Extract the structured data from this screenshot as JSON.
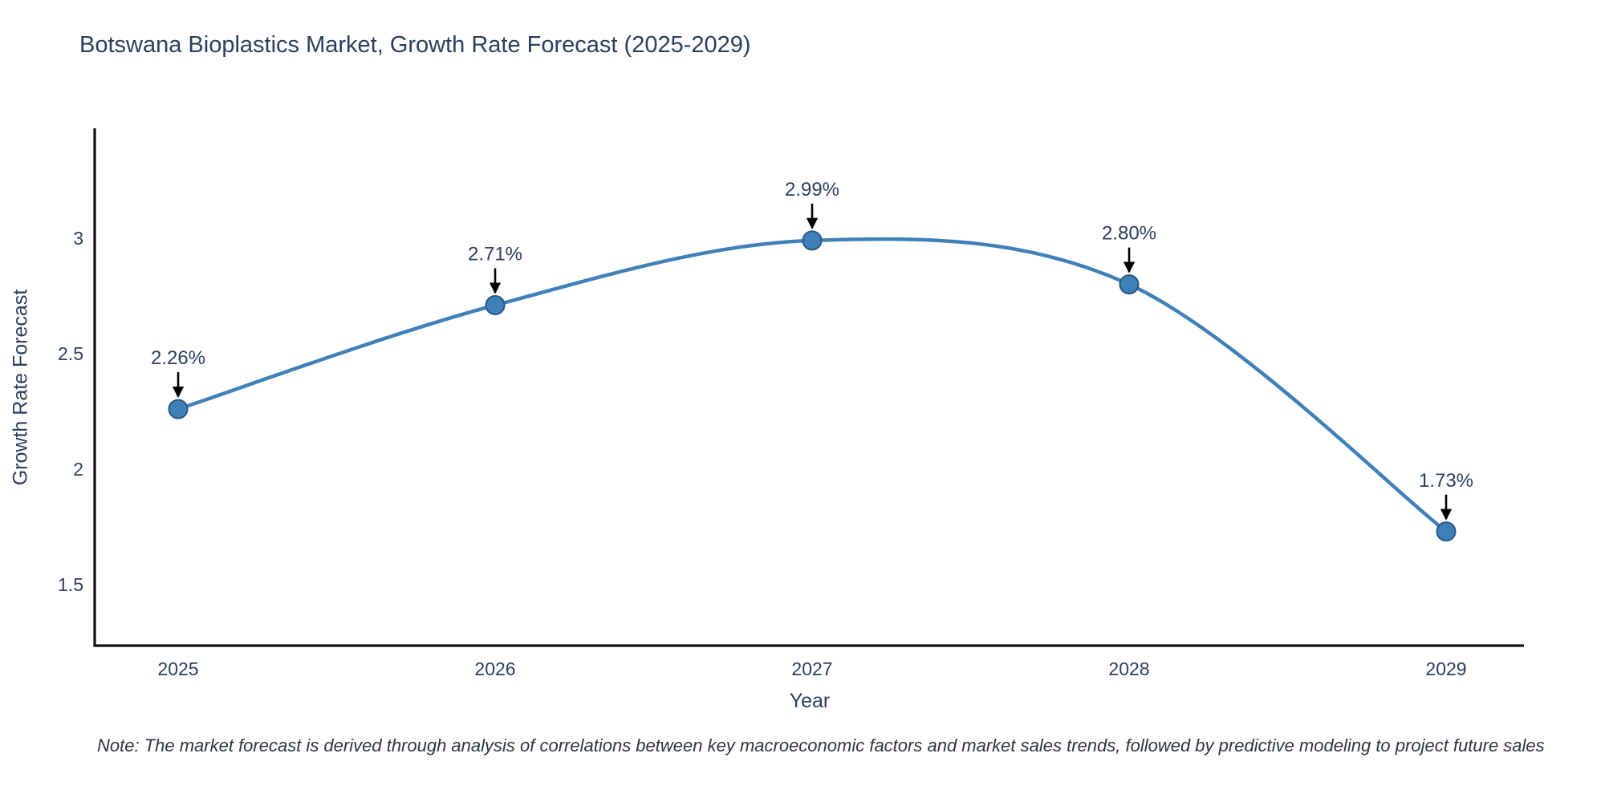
{
  "note": "Note: The market forecast is derived through analysis of correlations between key macroeconomic factors and market sales trends, followed by predictive modeling to project future sales",
  "chart_data": {
    "type": "line",
    "title": "Botswana Bioplastics Market, Growth Rate Forecast (2025-2029)",
    "xlabel": "Year",
    "ylabel": "Growth Rate Forecast",
    "categories": [
      "2025",
      "2026",
      "2027",
      "2028",
      "2029"
    ],
    "values": [
      2.26,
      2.71,
      2.99,
      2.8,
      1.73
    ],
    "point_labels": [
      "2.26%",
      "2.71%",
      "2.99%",
      "2.80%",
      "1.73%"
    ],
    "yticks": [
      "1.5",
      "2",
      "2.5",
      "3"
    ],
    "ytick_values": [
      1.5,
      2.0,
      2.5,
      3.0
    ],
    "ylim": [
      1.24,
      3.48
    ],
    "line_shape": "spline",
    "grid": false,
    "legend": "none",
    "colors": {
      "line": "#4080b8",
      "marker_fill": "#4080b8",
      "marker_edge": "#2a5783",
      "arrow": "#000000",
      "text": "#2a3f5f",
      "axis_line": "#111111"
    }
  }
}
